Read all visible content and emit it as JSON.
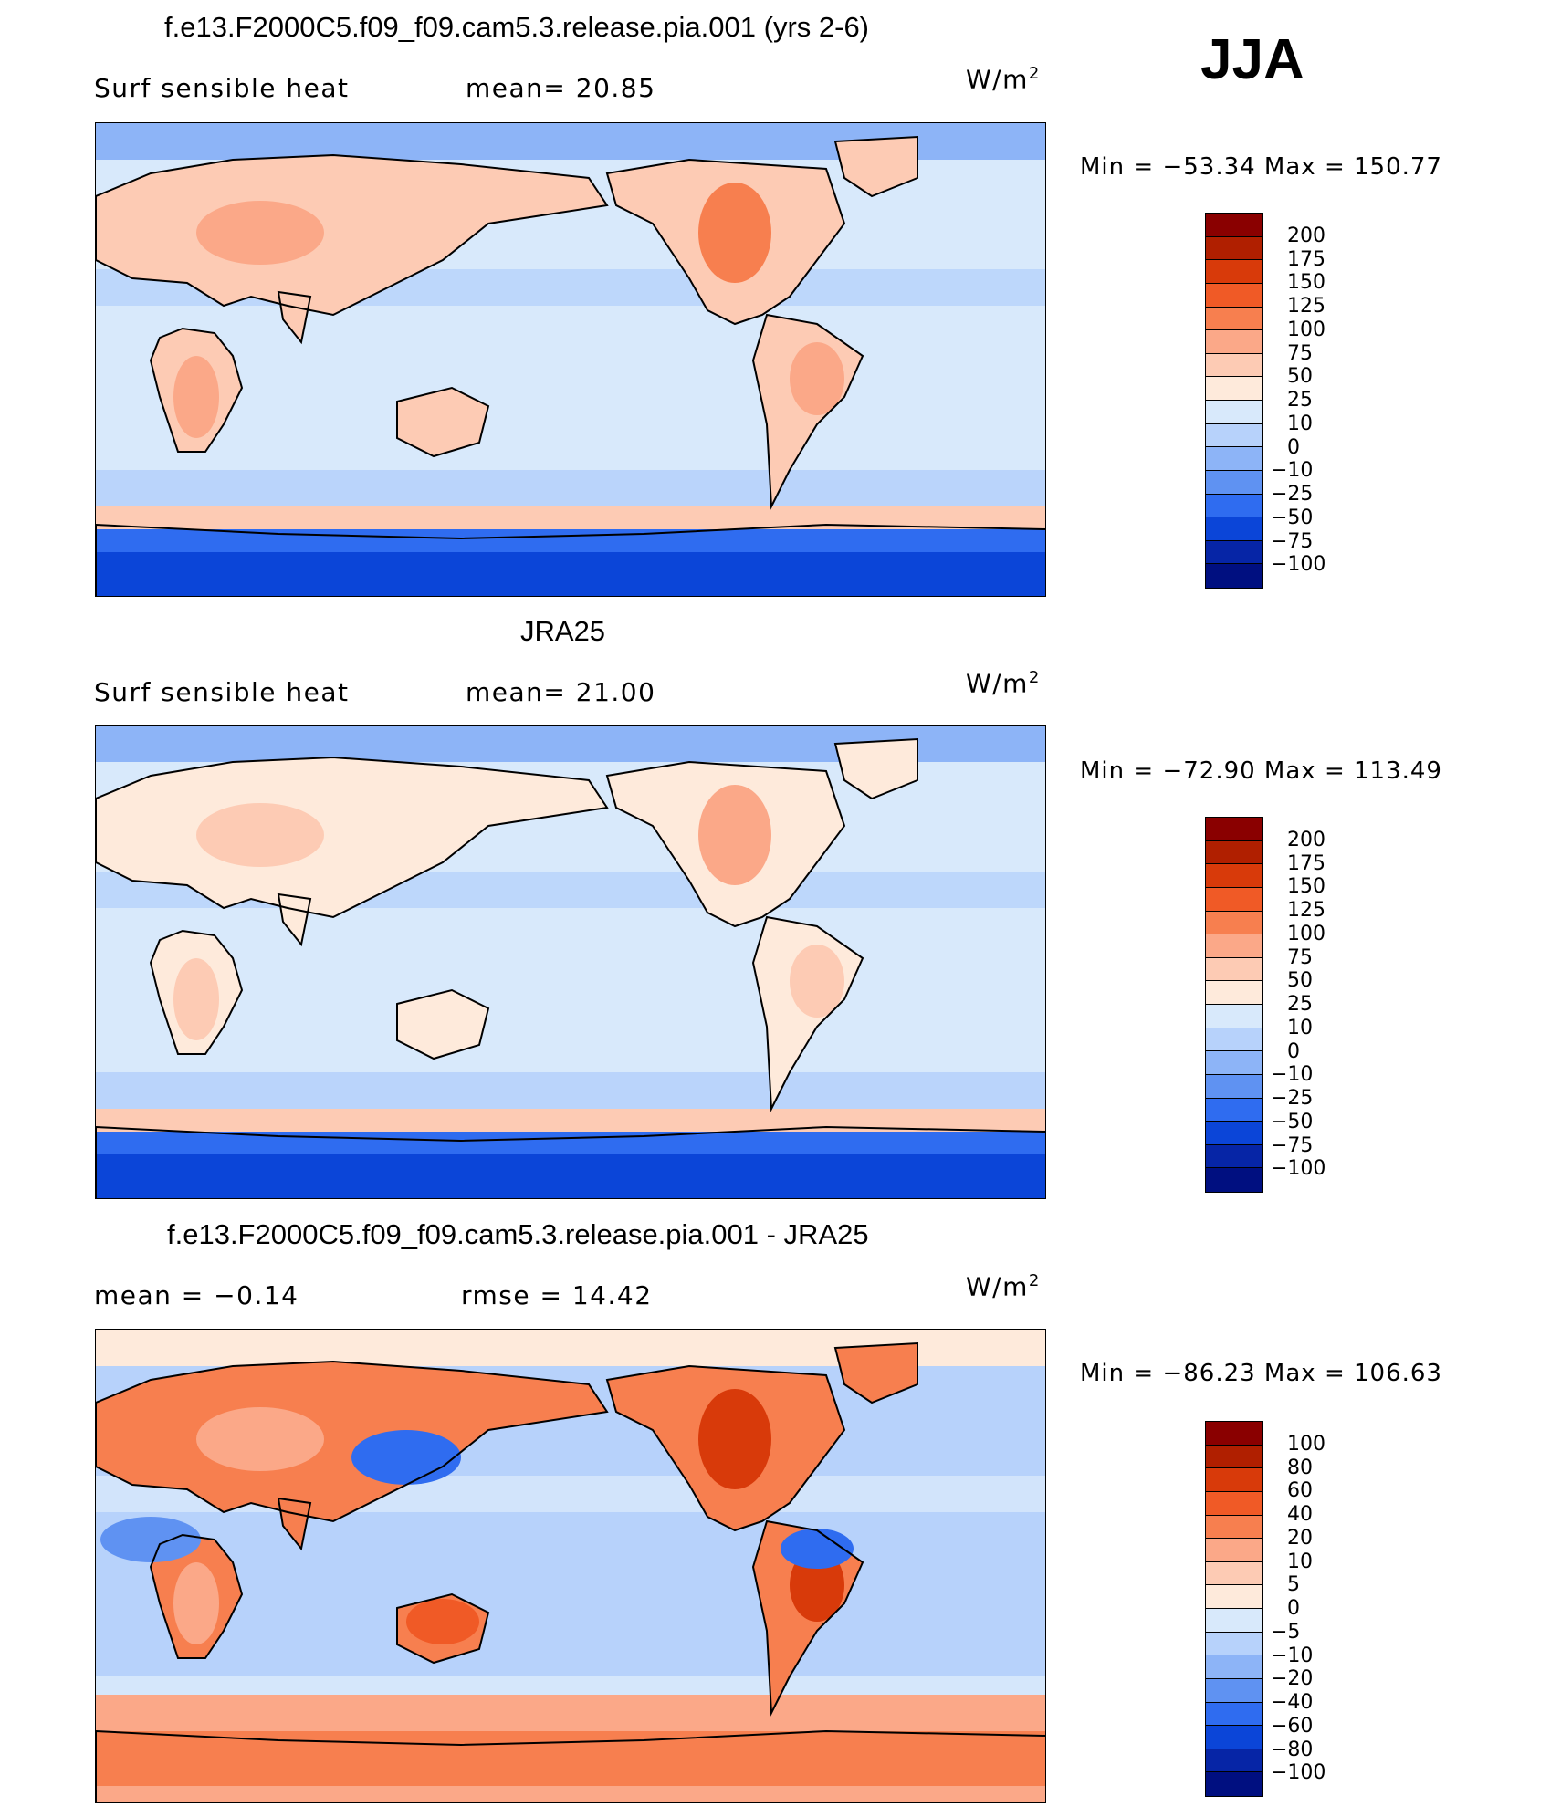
{
  "season": "JJA",
  "units": "W/m²",
  "panels": [
    {
      "title": "f.e13.F2000C5.f09_f09.cam5.3.release.pia.001 (yrs 2-6)",
      "variable": "Surf  sensible  heat",
      "stat1": "mean=   20.85",
      "stat2": "",
      "minmax": "Min  =  −53.34  Max  =  150.77",
      "scale": "abs",
      "mean": 20.85,
      "min": -53.34,
      "max": 150.77
    },
    {
      "title": "JRA25",
      "variable": "Surf  sensible  heat",
      "stat1": "mean=   21.00",
      "stat2": "",
      "minmax": "Min  =  −72.90  Max  =  113.49",
      "scale": "abs",
      "mean": 21.0,
      "min": -72.9,
      "max": 113.49
    },
    {
      "title": "f.e13.F2000C5.f09_f09.cam5.3.release.pia.001 - JRA25",
      "variable": "mean  =     −0.14",
      "stat1": "rmse  =     14.42",
      "stat2": "",
      "minmax": "Min  =  −86.23  Max  =  106.63",
      "scale": "diff",
      "mean": -0.14,
      "rmse": 14.42,
      "min": -86.23,
      "max": 106.63
    }
  ],
  "colorbars": {
    "abs": {
      "labels": [
        "200",
        "175",
        "150",
        "125",
        "100",
        "75",
        "50",
        "25",
        "10",
        "0",
        "−10",
        "−25",
        "−50",
        "−75",
        "−100"
      ],
      "colors": [
        "#8a0000",
        "#b01f00",
        "#d83a0a",
        "#f05a26",
        "#f77f4f",
        "#fba888",
        "#fdcbb4",
        "#feeadb",
        "#d8e9fb",
        "#b7d2fb",
        "#8db4f7",
        "#5f92f2",
        "#2f6cf0",
        "#0b45d8",
        "#0625a6",
        "#000f80"
      ]
    },
    "diff": {
      "labels": [
        "100",
        "80",
        "60",
        "40",
        "20",
        "10",
        "5",
        "0",
        "−5",
        "−10",
        "−20",
        "−40",
        "−60",
        "−80",
        "−100"
      ],
      "colors": [
        "#8a0000",
        "#b01f00",
        "#d83a0a",
        "#f05a26",
        "#f77f4f",
        "#fba888",
        "#fdcbb4",
        "#feeadb",
        "#d8e9fb",
        "#b7d2fb",
        "#8db4f7",
        "#5f92f2",
        "#2f6cf0",
        "#0b45d8",
        "#0625a6",
        "#000f80"
      ]
    }
  }
}
